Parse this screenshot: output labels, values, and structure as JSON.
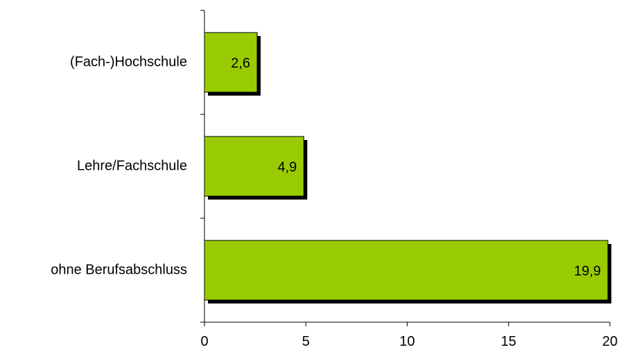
{
  "chart_data": {
    "type": "bar",
    "orientation": "horizontal",
    "categories": [
      "(Fach-)Hochschule",
      "Lehre/Fachschule",
      "ohne Berufsabschluss"
    ],
    "values": [
      2.6,
      4.9,
      19.9
    ],
    "value_labels": [
      "2,6",
      "4,9",
      "19,9"
    ],
    "x_ticks": [
      "0",
      "5",
      "10",
      "15",
      "20"
    ],
    "xlim": [
      0,
      20
    ],
    "title": "",
    "xlabel": "",
    "ylabel": "",
    "grid": false,
    "legend": "none",
    "bar_color": "#99CC00",
    "shadow_color": "#000000"
  }
}
